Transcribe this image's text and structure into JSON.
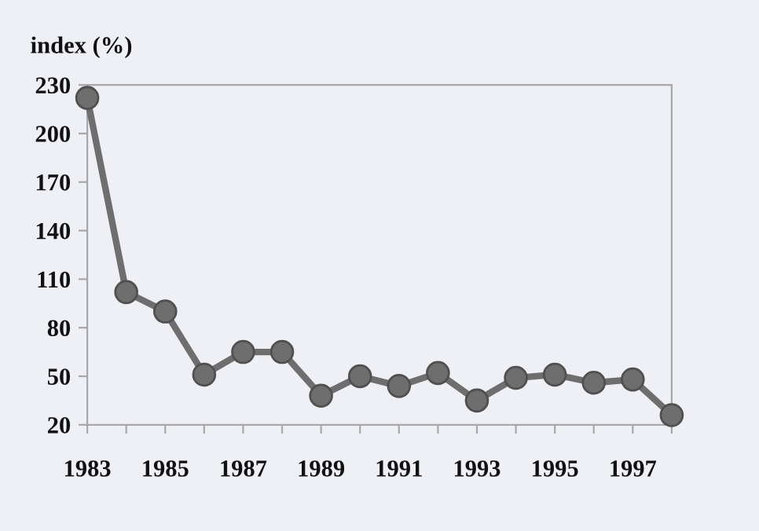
{
  "chart_data": {
    "type": "line",
    "ylabel": "index (%)",
    "x": [
      1983,
      1984,
      1985,
      1986,
      1987,
      1988,
      1989,
      1990,
      1991,
      1992,
      1993,
      1994,
      1995,
      1996,
      1997,
      1998
    ],
    "series": [
      {
        "color": "#6e6e6e",
        "values": [
          222,
          102,
          90,
          51,
          65,
          65,
          38,
          50,
          44,
          52,
          35,
          49,
          51,
          46,
          48,
          26
        ]
      }
    ],
    "xlim": [
      1983,
      1998
    ],
    "xticks": [
      1983,
      {
        "value": 1984,
        "label": null
      },
      1985,
      {
        "value": 1986,
        "label": null
      },
      1987,
      {
        "value": 1988,
        "label": null
      },
      1989,
      {
        "value": 1990,
        "label": null
      },
      1991,
      {
        "value": 1992,
        "label": null
      },
      1993,
      {
        "value": 1994,
        "label": null
      },
      1995,
      {
        "value": 1996,
        "label": null
      },
      1997,
      {
        "value": 1998,
        "label": null
      }
    ],
    "ylim": [
      20,
      230
    ],
    "yticks": [
      20,
      50,
      80,
      110,
      140,
      170,
      200,
      230
    ],
    "grid": false,
    "legend": false,
    "marker": "circle",
    "line_style": "solid"
  }
}
